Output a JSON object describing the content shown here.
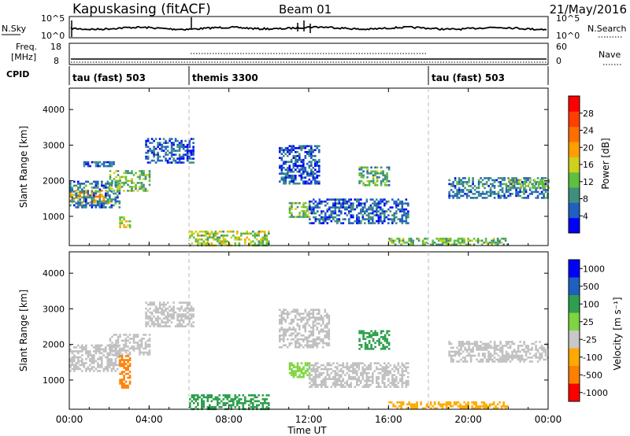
{
  "header": {
    "radar": "Kapuskasing (fitACF)",
    "beam": "Beam 01",
    "date": "21/May/2016"
  },
  "noise_panel": {
    "left_label": "N.Sky",
    "left_ticks": [
      "10^5",
      "10^0"
    ],
    "right_label": "N.Search",
    "right_ticks": [
      "10^5",
      "10^0"
    ]
  },
  "freq_panel": {
    "left_label_1": "Freq.",
    "left_label_2": "[MHz]",
    "left_ticks": [
      "18",
      "8"
    ],
    "right_label": "Nave",
    "right_ticks": [
      "60",
      "0"
    ]
  },
  "cpid": {
    "label": "CPID",
    "segments": [
      {
        "name": "tau (fast) 503",
        "start_hour": 0,
        "end_hour": 6
      },
      {
        "name": "themis 3300",
        "start_hour": 6,
        "end_hour": 18
      },
      {
        "name": "tau (fast) 503",
        "start_hour": 18,
        "end_hour": 24
      }
    ]
  },
  "colors": {
    "power": [
      "#0000ff",
      "#1f5fbf",
      "#3f8f7f",
      "#5fbf3f",
      "#cfcf1f",
      "#ff9f00",
      "#ff6f00",
      "#ff3f00",
      "#ff0000"
    ],
    "velocity": [
      "#ff0000",
      "#ff7f00",
      "#ffaa00",
      "#c8c8c8",
      "#7fd43f",
      "#2f9f4f",
      "#1f5fbf",
      "#0000ff"
    ],
    "ground_scatter": "#c0c0c0",
    "grid_dashed": "#b8b8b8"
  },
  "chart_data": [
    {
      "type": "heatmap",
      "name": "power",
      "ylabel": "Slant Range [km]",
      "ylim": [
        180,
        4600
      ],
      "yticks": [
        "1000",
        "2000",
        "3000",
        "4000"
      ],
      "colorbar_label": "Power [dB]",
      "colorbar_ticks": [
        "4",
        "8",
        "12",
        "16",
        "20",
        "24",
        "28"
      ],
      "colorbar_range": [
        0,
        32
      ],
      "regions": [
        {
          "t0": 0.0,
          "t1": 2.0,
          "r0": 1400,
          "r1": 1750,
          "value": 22
        },
        {
          "t0": 0.0,
          "t1": 2.5,
          "r0": 1250,
          "r1": 2000,
          "value": 8
        },
        {
          "t0": 0.5,
          "t1": 2.2,
          "r0": 2400,
          "r1": 2550,
          "value": 6
        },
        {
          "t0": 2.0,
          "t1": 4.0,
          "r0": 1700,
          "r1": 2300,
          "value": 14
        },
        {
          "t0": 2.5,
          "t1": 3.0,
          "r0": 700,
          "r1": 1000,
          "value": 18
        },
        {
          "t0": 3.8,
          "t1": 6.2,
          "r0": 2500,
          "r1": 3200,
          "value": 6
        },
        {
          "t0": 6.0,
          "t1": 10.0,
          "r0": 200,
          "r1": 600,
          "value": 16
        },
        {
          "t0": 10.5,
          "t1": 12.5,
          "r0": 1900,
          "r1": 3000,
          "value": 6
        },
        {
          "t0": 11.0,
          "t1": 12.0,
          "r0": 1000,
          "r1": 1400,
          "value": 14
        },
        {
          "t0": 12.0,
          "t1": 17.0,
          "r0": 800,
          "r1": 1500,
          "value": 6
        },
        {
          "t0": 14.5,
          "t1": 16.0,
          "r0": 1900,
          "r1": 2400,
          "value": 12
        },
        {
          "t0": 16.0,
          "t1": 22.0,
          "r0": 200,
          "r1": 400,
          "value": 14
        },
        {
          "t0": 19.0,
          "t1": 24.0,
          "r0": 1500,
          "r1": 2100,
          "value": 8
        },
        {
          "t0": 22.0,
          "t1": 24.0,
          "r0": 1800,
          "r1": 2050,
          "value": 14
        }
      ]
    },
    {
      "type": "heatmap",
      "name": "velocity",
      "ylabel": "Slant Range [km]",
      "ylim": [
        180,
        4600
      ],
      "yticks": [
        "1000",
        "2000",
        "3000",
        "4000"
      ],
      "xlabel": "Time UT",
      "xticks": [
        "00:00",
        "04:00",
        "08:00",
        "12:00",
        "16:00",
        "20:00",
        "00:00"
      ],
      "colorbar_label": "Velocity [m s⁻¹]",
      "colorbar_ticks": [
        "1000",
        "500",
        "100",
        "25",
        "-25",
        "-100",
        "-500",
        "-1000"
      ],
      "regions": [
        {
          "t0": 0.0,
          "t1": 2.5,
          "r0": 1250,
          "r1": 2000,
          "value": "gs"
        },
        {
          "t0": 2.0,
          "t1": 4.0,
          "r0": 1700,
          "r1": 2300,
          "value": "gs"
        },
        {
          "t0": 2.5,
          "t1": 3.0,
          "r0": 800,
          "r1": 1700,
          "value": -300
        },
        {
          "t0": 3.8,
          "t1": 6.2,
          "r0": 2500,
          "r1": 3200,
          "value": "gs"
        },
        {
          "t0": 6.0,
          "t1": 10.0,
          "r0": 200,
          "r1": 600,
          "value": 150
        },
        {
          "t0": 10.5,
          "t1": 13.0,
          "r0": 1900,
          "r1": 3000,
          "value": "gs"
        },
        {
          "t0": 11.0,
          "t1": 12.0,
          "r0": 1100,
          "r1": 1500,
          "value": 60
        },
        {
          "t0": 12.0,
          "t1": 17.0,
          "r0": 800,
          "r1": 1500,
          "value": "gs"
        },
        {
          "t0": 14.5,
          "t1": 16.0,
          "r0": 1900,
          "r1": 2400,
          "value": 300
        },
        {
          "t0": 16.0,
          "t1": 22.0,
          "r0": 200,
          "r1": 400,
          "value": -60
        },
        {
          "t0": 19.0,
          "t1": 24.0,
          "r0": 1500,
          "r1": 2100,
          "value": "gs"
        }
      ]
    }
  ]
}
